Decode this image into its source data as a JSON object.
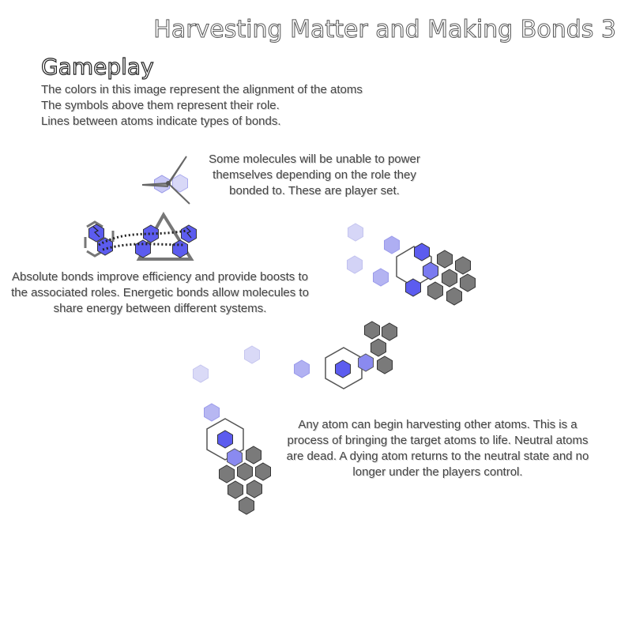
{
  "title": "Harvesting Matter and Making Bonds 3",
  "heading": "Gameplay",
  "intro_lines": [
    "The colors in this image represent the alignment of the atoms",
    "The symbols above them represent their role.",
    "Lines between atoms indicate types of bonds."
  ],
  "paragraphs": {
    "molecules": "Some molecules will be unable to power themselves depending on the role they bonded to.  These are player set.",
    "bonds": "Absolute bonds improve efficiency and provide boosts to the associated roles. Energetic bonds allow molecules to share energy between different systems.",
    "harvest": "Any atom can begin harvesting other atoms. This is a process of bringing the target atoms to life. Neutral atoms are dead.  A dying atom returns to the neutral state and no longer under the players control."
  },
  "colors": {
    "player_atom": "#5c5cef",
    "faded_atom": "#c9c9f5",
    "neutral_atom": "#7a7a7a",
    "text": "#444444"
  }
}
